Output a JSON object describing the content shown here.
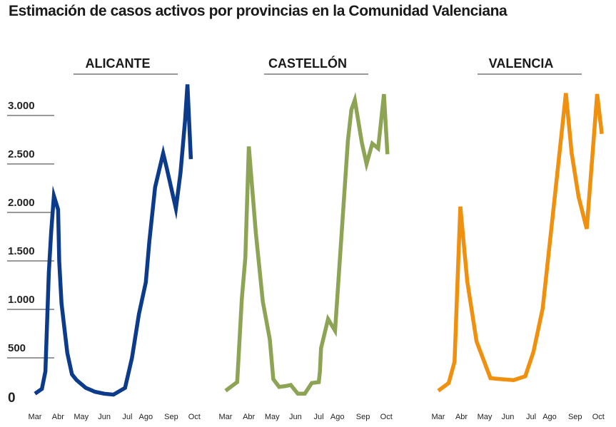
{
  "title": "Estimación de casos activos por provincias en la Comunidad Valenciana",
  "colors": {
    "alicante": "#0d3b8c",
    "castellon": "#8da455",
    "valencia": "#f0900f",
    "rule": "#333333"
  },
  "chart_data": {
    "type": "line",
    "title": "Estimación de casos activos por provincias en la Comunidad Valenciana",
    "y_ticks": [
      {
        "value": 0,
        "label": "0"
      },
      {
        "value": 500,
        "label": "500"
      },
      {
        "value": 1000,
        "label": "1.000"
      },
      {
        "value": 1500,
        "label": "1.500"
      },
      {
        "value": 2000,
        "label": "2.000"
      },
      {
        "value": 2500,
        "label": "2.500"
      },
      {
        "value": 3000,
        "label": "3.000"
      }
    ],
    "ylim": [
      0,
      3400
    ],
    "x_ticks": [
      {
        "t": 0,
        "label": "Mar"
      },
      {
        "t": 1,
        "label": "Abr"
      },
      {
        "t": 2,
        "label": "May"
      },
      {
        "t": 3,
        "label": "Jun"
      },
      {
        "t": 4,
        "label": "Jul"
      },
      {
        "t": 4.8,
        "label": "Ago"
      },
      {
        "t": 5.9,
        "label": "Sep"
      },
      {
        "t": 6.9,
        "label": "Oct"
      }
    ],
    "panels": [
      {
        "name": "ALICANTE",
        "color": "#0d3b8c",
        "points": [
          [
            0,
            20
          ],
          [
            0.3,
            70
          ],
          [
            0.45,
            250
          ],
          [
            0.6,
            1270
          ],
          [
            0.7,
            1690
          ],
          [
            0.82,
            2060
          ],
          [
            1.0,
            1920
          ],
          [
            1.05,
            1380
          ],
          [
            1.15,
            950
          ],
          [
            1.3,
            640
          ],
          [
            1.4,
            440
          ],
          [
            1.6,
            220
          ],
          [
            1.8,
            160
          ],
          [
            2.2,
            80
          ],
          [
            2.6,
            40
          ],
          [
            3.0,
            20
          ],
          [
            3.4,
            10
          ],
          [
            3.9,
            80
          ],
          [
            4.2,
            390
          ],
          [
            4.5,
            840
          ],
          [
            4.8,
            1170
          ],
          [
            4.95,
            1590
          ],
          [
            5.2,
            2150
          ],
          [
            5.55,
            2500
          ],
          [
            5.7,
            2350
          ],
          [
            6.1,
            1930
          ],
          [
            6.3,
            2300
          ],
          [
            6.5,
            2840
          ],
          [
            6.6,
            3210
          ],
          [
            6.75,
            2440
          ]
        ]
      },
      {
        "name": "CASTELLÓN",
        "color": "#8da455",
        "points": [
          [
            0,
            50
          ],
          [
            0.5,
            140
          ],
          [
            0.7,
            1000
          ],
          [
            0.85,
            1420
          ],
          [
            1.0,
            2570
          ],
          [
            1.3,
            1680
          ],
          [
            1.6,
            970
          ],
          [
            1.9,
            580
          ],
          [
            2.05,
            170
          ],
          [
            2.3,
            90
          ],
          [
            2.6,
            100
          ],
          [
            2.8,
            110
          ],
          [
            3.1,
            20
          ],
          [
            3.4,
            20
          ],
          [
            3.7,
            130
          ],
          [
            4.0,
            140
          ],
          [
            4.05,
            250
          ],
          [
            4.1,
            490
          ],
          [
            4.4,
            790
          ],
          [
            4.7,
            670
          ],
          [
            5.25,
            2630
          ],
          [
            5.4,
            2950
          ],
          [
            5.55,
            3050
          ],
          [
            5.85,
            2610
          ],
          [
            6.05,
            2390
          ],
          [
            6.3,
            2600
          ],
          [
            6.55,
            2550
          ],
          [
            6.8,
            3110
          ],
          [
            6.95,
            2490
          ]
        ]
      },
      {
        "name": "VALENCIA",
        "color": "#f0900f",
        "points": [
          [
            0,
            50
          ],
          [
            0.45,
            130
          ],
          [
            0.7,
            350
          ],
          [
            0.95,
            1950
          ],
          [
            1.25,
            1180
          ],
          [
            1.65,
            560
          ],
          [
            2.25,
            180
          ],
          [
            2.7,
            170
          ],
          [
            3.25,
            160
          ],
          [
            3.75,
            200
          ],
          [
            4.1,
            450
          ],
          [
            4.5,
            900
          ],
          [
            5.0,
            2000
          ],
          [
            5.5,
            3120
          ],
          [
            5.75,
            2500
          ],
          [
            6.05,
            2050
          ],
          [
            6.4,
            1720
          ],
          [
            6.85,
            3110
          ],
          [
            7.05,
            2700
          ]
        ]
      }
    ]
  }
}
